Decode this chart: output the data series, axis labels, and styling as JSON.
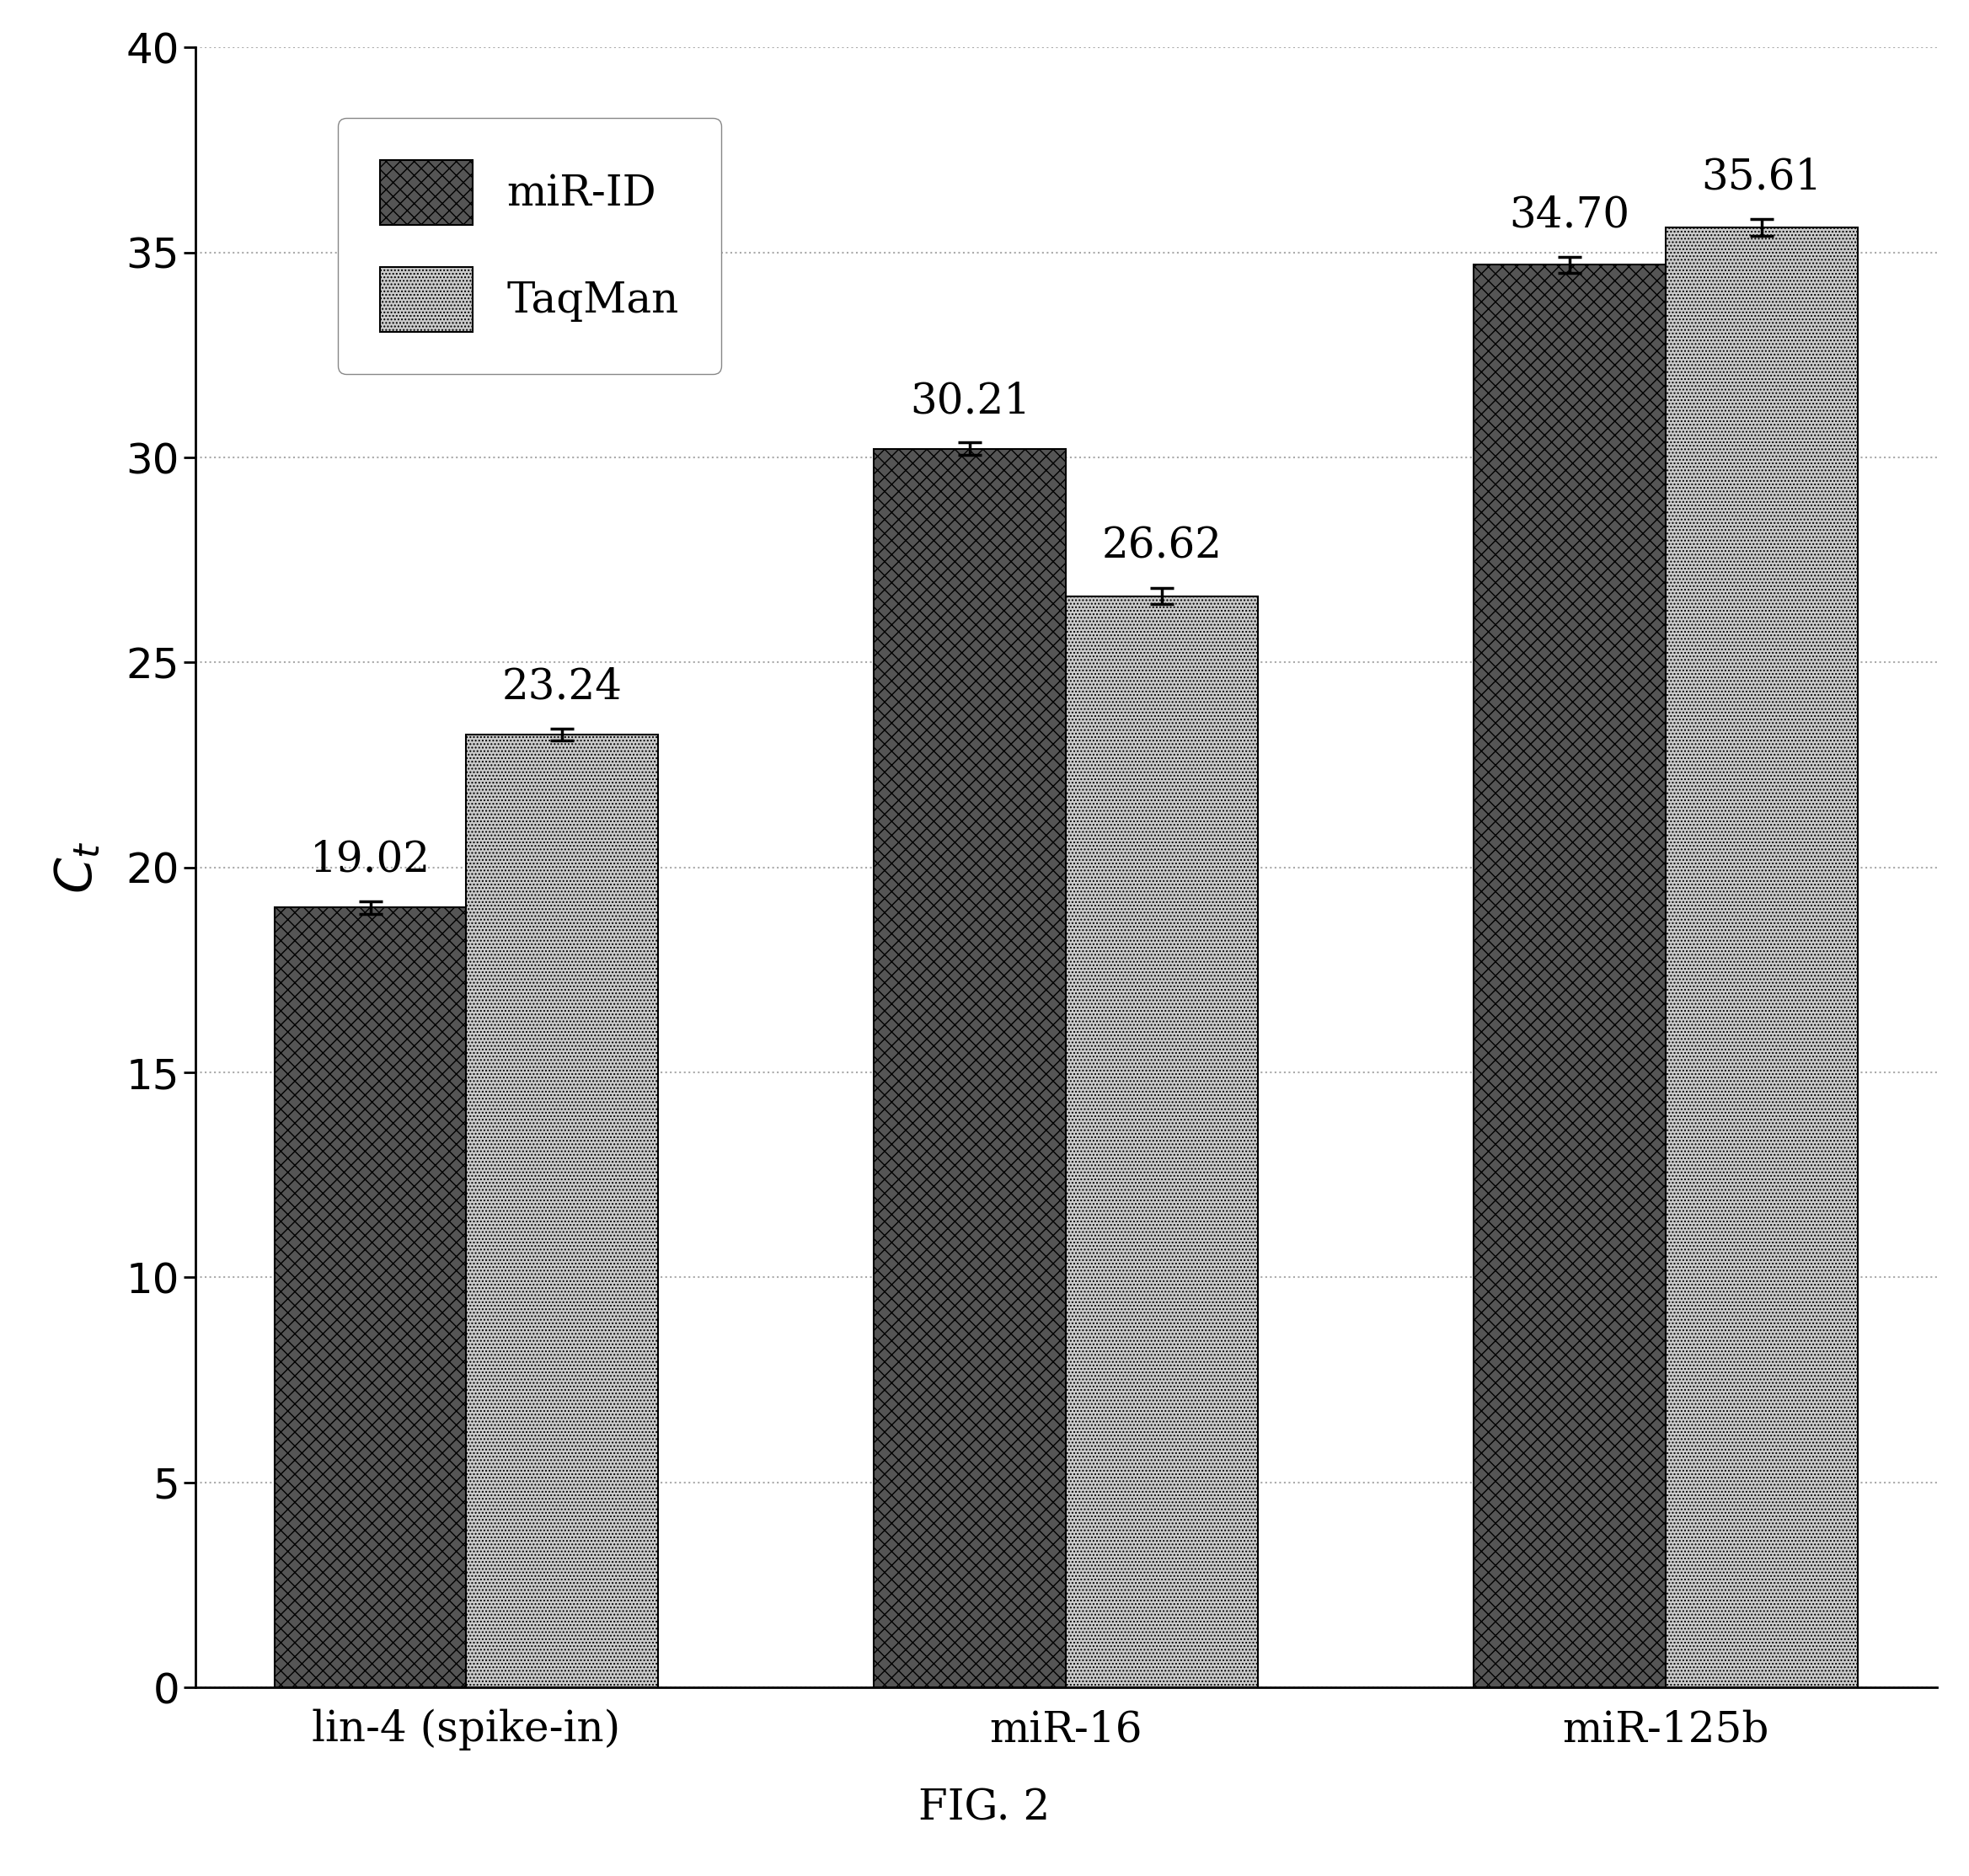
{
  "categories": [
    "lin-4 (spike-in)",
    "miR-16",
    "miR-125b"
  ],
  "mirid_values": [
    19.02,
    30.21,
    34.7
  ],
  "taqman_values": [
    23.24,
    26.62,
    35.61
  ],
  "mirid_errors": [
    0.15,
    0.15,
    0.2
  ],
  "taqman_errors": [
    0.15,
    0.2,
    0.2
  ],
  "ylim": [
    0,
    40
  ],
  "yticks": [
    0,
    5,
    10,
    15,
    20,
    25,
    30,
    35,
    40
  ],
  "ylabel": "$C_t$",
  "legend_labels": [
    "miR-ID",
    "TaqMan"
  ],
  "figure_caption": "FIG. 2",
  "bar_width": 0.32,
  "mirid_color": "#555555",
  "taqman_color": "#cccccc",
  "grid_color": "#aaaaaa",
  "annotation_fontsize": 36,
  "tick_fontsize": 36,
  "ylabel_fontsize": 44,
  "legend_fontsize": 36,
  "caption_fontsize": 36,
  "xtick_fontsize": 36
}
